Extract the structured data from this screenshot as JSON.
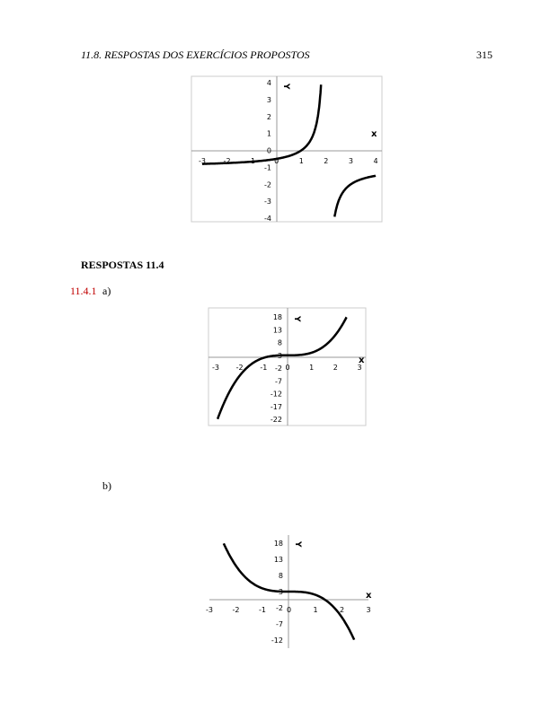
{
  "header": {
    "section": "11.8.  RESPOSTAS DOS EXERCÍCIOS PROPOSTOS",
    "page": "315"
  },
  "figures": [
    {
      "xticks": [
        "-3",
        "-2",
        "-1",
        "0",
        "1",
        "2",
        "3",
        "4"
      ],
      "yticks": [
        "4",
        "3",
        "2",
        "1",
        "0",
        "-1",
        "-2",
        "-3",
        "-4"
      ],
      "x_label": "x",
      "y_label": "Y"
    },
    {
      "xticks": [
        "-3",
        "-2",
        "-1",
        "0",
        "1",
        "2",
        "3"
      ],
      "yticks": [
        "18",
        "13",
        "8",
        "3",
        "-2",
        "-7",
        "-12",
        "-17",
        "-22"
      ],
      "x_label": "x",
      "y_label": "Y"
    },
    {
      "xticks": [
        "-3",
        "-2",
        "-1",
        "0",
        "1",
        "2",
        "3"
      ],
      "yticks": [
        "18",
        "13",
        "8",
        "3",
        "-2",
        "-7",
        "-12"
      ],
      "x_label": "x",
      "y_label": "Y"
    }
  ],
  "section": {
    "title": "RESPOSTAS 11.4",
    "exercise": "11.4.1",
    "part_a": "a)",
    "part_b": "b)"
  }
}
